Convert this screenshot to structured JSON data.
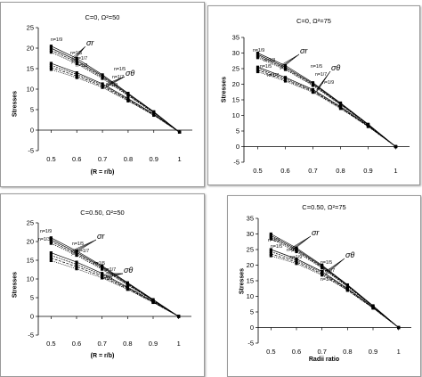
{
  "chart_data": [
    {
      "type": "line",
      "title": "C=0, Ω²=50",
      "xlabel": "(R = r/b)",
      "ylabel": "Stresses",
      "x_ticks": [
        "0.5",
        "0.6",
        "0.7",
        "0.8",
        "0.9",
        "1"
      ],
      "y_ticks": [
        "-5",
        "0",
        "5",
        "10",
        "15",
        "20",
        "25"
      ],
      "xlim": [
        0.45,
        1.05
      ],
      "ylim": [
        -5,
        25
      ],
      "x": [
        0.5,
        0.6,
        0.7,
        0.8,
        0.9,
        1.0
      ],
      "series": [
        {
          "values": [
            20.5,
            17.5,
            13.5,
            9.0,
            4.5,
            -0.5
          ]
        },
        {
          "values": [
            20.0,
            17.0,
            13.2,
            8.8,
            4.4,
            -0.5
          ]
        },
        {
          "values": [
            19.5,
            16.6,
            12.9,
            8.6,
            4.3,
            -0.5
          ]
        },
        {
          "values": [
            19.0,
            16.2,
            12.6,
            8.4,
            4.2,
            -0.5
          ]
        },
        {
          "values": [
            16.3,
            14.0,
            11.3,
            7.7,
            3.9,
            -0.5
          ]
        },
        {
          "values": [
            15.8,
            13.6,
            11.0,
            7.5,
            3.8,
            -0.5
          ]
        },
        {
          "values": [
            15.3,
            13.2,
            10.7,
            7.3,
            3.7,
            -0.5
          ]
        },
        {
          "values": [
            14.8,
            12.8,
            10.4,
            7.1,
            3.6,
            -0.5
          ]
        }
      ],
      "annotations": [
        "n=1/9",
        "n=1/5",
        "n=1/7",
        "n=1/3",
        "σr",
        "n=1/5",
        "n=1/7",
        "n=1/9",
        "σθ"
      ],
      "grid": false,
      "legend": "none"
    },
    {
      "type": "line",
      "title": "C=0, Ω²=75",
      "xlabel": "",
      "ylabel": "Stresses",
      "x_ticks": [
        "0.5",
        "0.6",
        "0.7",
        "0.8",
        "0.9",
        "1"
      ],
      "y_ticks": [
        "-5",
        "0",
        "5",
        "10",
        "15",
        "20",
        "25",
        "30",
        "35"
      ],
      "xlim": [
        0.45,
        1.05
      ],
      "ylim": [
        -5,
        35
      ],
      "x": [
        0.5,
        0.6,
        0.7,
        0.8,
        0.9,
        1.0
      ],
      "series": [
        {
          "values": [
            30.0,
            26.0,
            20.5,
            14.0,
            7.2,
            0.0
          ]
        },
        {
          "values": [
            29.5,
            25.5,
            20.2,
            13.8,
            7.1,
            0.0
          ]
        },
        {
          "values": [
            29.0,
            25.1,
            19.9,
            13.6,
            7.0,
            0.0
          ]
        },
        {
          "values": [
            28.5,
            24.7,
            19.6,
            13.4,
            6.9,
            0.0
          ]
        },
        {
          "values": [
            25.5,
            22.2,
            18.3,
            12.8,
            6.7,
            0.0
          ]
        },
        {
          "values": [
            25.0,
            21.8,
            18.0,
            12.6,
            6.6,
            0.0
          ]
        },
        {
          "values": [
            24.5,
            21.4,
            17.7,
            12.4,
            6.5,
            0.0
          ]
        },
        {
          "values": [
            24.0,
            21.0,
            17.4,
            12.2,
            6.4,
            0.0
          ]
        }
      ],
      "annotations": [
        "n=1/9",
        "n=1/3",
        "n=1/5",
        "n=1/7",
        "σr",
        "n=1/5",
        "n=1/7",
        "n=1/9",
        "σθ"
      ],
      "grid": false,
      "legend": "none"
    },
    {
      "type": "line",
      "title": "C=0.50, Ω²=50",
      "xlabel": "(R = r/b)",
      "ylabel": "Stresses",
      "x_ticks": [
        "0.5",
        "0.6",
        "0.7",
        "0.8",
        "0.9",
        "1"
      ],
      "y_ticks": [
        "-5",
        "0",
        "5",
        "10",
        "15",
        "20",
        "25"
      ],
      "xlim": [
        0.45,
        1.05
      ],
      "ylim": [
        -5,
        25
      ],
      "x": [
        0.5,
        0.6,
        0.7,
        0.8,
        0.9,
        1.0
      ],
      "series": [
        {
          "values": [
            21.0,
            17.5,
            13.5,
            9.0,
            4.5,
            0.0
          ]
        },
        {
          "values": [
            20.5,
            17.1,
            13.2,
            8.8,
            4.4,
            0.0
          ]
        },
        {
          "values": [
            20.0,
            16.7,
            12.9,
            8.6,
            4.3,
            0.0
          ]
        },
        {
          "values": [
            19.5,
            16.3,
            12.6,
            8.4,
            4.2,
            0.0
          ]
        },
        {
          "values": [
            17.0,
            14.5,
            11.5,
            7.8,
            4.0,
            0.0
          ]
        },
        {
          "values": [
            16.3,
            13.9,
            11.1,
            7.6,
            3.9,
            0.0
          ]
        },
        {
          "values": [
            15.6,
            13.3,
            10.7,
            7.4,
            3.8,
            0.0
          ]
        },
        {
          "values": [
            14.9,
            12.7,
            10.3,
            7.2,
            3.7,
            0.0
          ]
        }
      ],
      "annotations": [
        "n=1/9",
        "n=1/3",
        "n=1/5",
        "n=1/7",
        "σr",
        "n=1/5",
        "n=1/7",
        "n=1/9",
        "σθ"
      ],
      "grid": false,
      "legend": "none"
    },
    {
      "type": "line",
      "title": "C=0.50, Ω²=75",
      "xlabel": "Radii ratio",
      "ylabel": "Stresses",
      "x_ticks": [
        "0.5",
        "0.6",
        "0.7",
        "0.8",
        "0.9",
        "1"
      ],
      "y_ticks": [
        "-5",
        "0",
        "5",
        "10",
        "15",
        "20",
        "25",
        "30",
        "35"
      ],
      "xlim": [
        0.45,
        1.05
      ],
      "ylim": [
        -5,
        35
      ],
      "x": [
        0.5,
        0.6,
        0.7,
        0.8,
        0.9,
        1.0
      ],
      "series": [
        {
          "values": [
            30.0,
            25.5,
            20.0,
            13.7,
            7.0,
            0.0
          ]
        },
        {
          "values": [
            29.5,
            25.1,
            19.7,
            13.5,
            6.9,
            0.0
          ]
        },
        {
          "values": [
            29.0,
            24.7,
            19.4,
            13.3,
            6.8,
            0.0
          ]
        },
        {
          "values": [
            28.5,
            24.3,
            19.1,
            13.1,
            6.7,
            0.0
          ]
        },
        {
          "values": [
            25.0,
            22.0,
            18.0,
            12.5,
            6.5,
            0.0
          ]
        },
        {
          "values": [
            24.3,
            21.5,
            17.6,
            12.3,
            6.4,
            0.0
          ]
        },
        {
          "values": [
            23.6,
            21.0,
            17.2,
            12.1,
            6.3,
            0.0
          ]
        },
        {
          "values": [
            23.0,
            20.5,
            16.8,
            11.9,
            6.2,
            0.0
          ]
        }
      ],
      "annotations": [
        "n=1/3",
        "n=1/5",
        "n=1/7",
        "n=1/9",
        "σr",
        "n=1/5",
        "n=1/7",
        "n=1/9",
        "σθ"
      ],
      "grid": false,
      "legend": "none"
    }
  ]
}
